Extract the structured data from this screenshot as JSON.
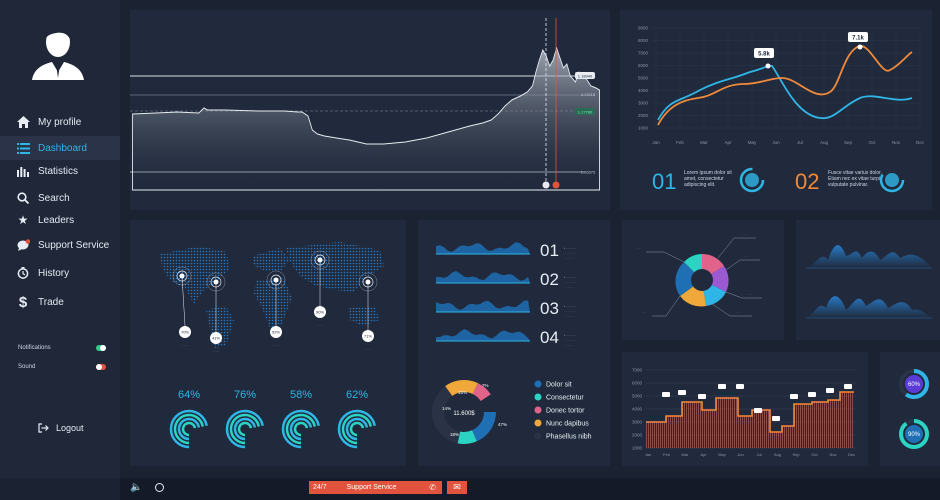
{
  "sidebar": {
    "items": [
      {
        "label": "My profile",
        "icon": "home-icon"
      },
      {
        "label": "Dashboard",
        "icon": "list-icon"
      },
      {
        "label": "Statistics",
        "icon": "bar-chart-icon"
      },
      {
        "label": "Search",
        "icon": "search-icon"
      },
      {
        "label": "Leaders",
        "icon": "star-icon"
      },
      {
        "label": "Support Service",
        "icon": "chat-icon"
      },
      {
        "label": "History",
        "icon": "clock-icon"
      },
      {
        "label": "Trade",
        "icon": "dollar-icon"
      }
    ],
    "notifications_label": "Notifications",
    "sound_label": "Sound",
    "logout_label": "Logout"
  },
  "price_chart": {
    "price_tags": [
      "1.18940",
      "1.18118",
      "1.17780",
      "1.16372"
    ]
  },
  "line_chart": {
    "callout_a": "5.8k",
    "callout_b": "7.1k",
    "yticks": [
      "9000",
      "8000",
      "7000",
      "6000",
      "5000",
      "4000",
      "3000",
      "2000",
      "1000"
    ],
    "months": [
      "Jan",
      "Feb",
      "Mar",
      "Apr",
      "May",
      "Jun",
      "Jul",
      "Aug",
      "Sep",
      "Oct",
      "Nov",
      "Dec"
    ],
    "stat1": {
      "num": "01",
      "text": "Lorem ipsum dolor sit amet, consectetur adipiscing elit."
    },
    "stat2": {
      "num": "02",
      "text": "Fusce vitae varius dolor. Etiam nec ex vitae turpis vulputate pulvinar."
    }
  },
  "map": {
    "pins": [
      "70%",
      "41%",
      "52%",
      "90%",
      "71%"
    ],
    "percents": [
      "64%",
      "76%",
      "58%",
      "62%"
    ]
  },
  "waves": {
    "numbers": [
      "01",
      "02",
      "03",
      "04"
    ]
  },
  "donut": {
    "center_value": "11.600$",
    "segments": [
      "15%",
      "7%",
      "14%",
      "47%",
      "18%"
    ],
    "legend": [
      {
        "label": "Dolor sit",
        "color": "#1f6fb4"
      },
      {
        "label": "Consectetur",
        "color": "#2bd3c3"
      },
      {
        "label": "Donec tortor",
        "color": "#e2638a"
      },
      {
        "label": "Nunc dapibus",
        "color": "#f0a83a"
      },
      {
        "label": "Phasellus nibh",
        "color": "#2a3345"
      }
    ]
  },
  "step_chart": {
    "yticks": [
      "7000",
      "6000",
      "5000",
      "4000",
      "3000",
      "2000",
      "1000"
    ],
    "months": [
      "Jan",
      "Feb",
      "Mar",
      "Apr",
      "May",
      "Jun",
      "Jul",
      "Aug",
      "Sep",
      "Oct",
      "Nov",
      "Dec"
    ]
  },
  "gauges": [
    "60%",
    "90%"
  ],
  "footer": {
    "support_prefix": "24/7",
    "support_label": "Support Service"
  },
  "colors": {
    "accent": "#2fb6e6",
    "orange": "#f08a3a",
    "bg": "#1b2232",
    "panel": "#202a3c",
    "red": "#e2533d"
  }
}
